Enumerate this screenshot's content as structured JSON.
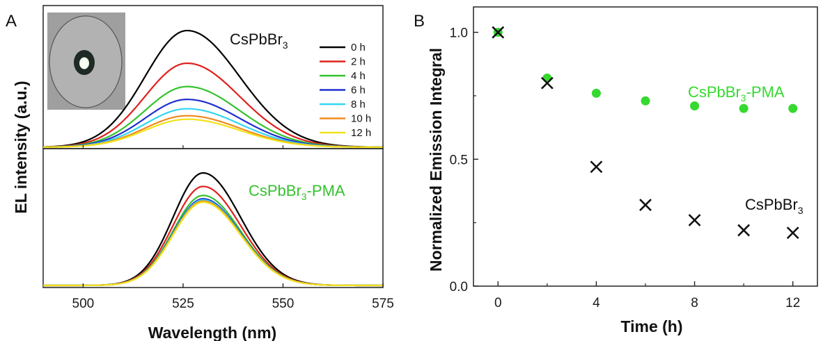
{
  "chart_data": [
    {
      "panel": "A",
      "type": "line",
      "xlabel": "Wavelength (nm)",
      "ylabel": "EL intensity (a.u.)",
      "xlim": [
        490,
        575
      ],
      "x_ticks": [
        "500",
        "525",
        "550",
        "575"
      ],
      "top": {
        "label": "CsPbBr",
        "label_sub": "3",
        "peak_nm": 526,
        "width_nm": 10.5,
        "series": [
          {
            "name": "0 h",
            "color": "#000000",
            "peak": 1.0
          },
          {
            "name": "2 h",
            "color": "#e0201c",
            "peak": 0.72
          },
          {
            "name": "4 h",
            "color": "#35c22e",
            "peak": 0.52
          },
          {
            "name": "6 h",
            "color": "#1f2fcf",
            "peak": 0.41
          },
          {
            "name": "8 h",
            "color": "#33d6f0",
            "peak": 0.33
          },
          {
            "name": "10 h",
            "color": "#ef8a1e",
            "peak": 0.27
          },
          {
            "name": "12 h",
            "color": "#f2e21a",
            "peak": 0.24
          }
        ]
      },
      "bottom": {
        "label": "CsPbBr",
        "label_sub": "3",
        "label_suffix": "-PMA",
        "label_color": "#35c22e",
        "peak_nm": 530,
        "width_nm": 7.5,
        "series": [
          {
            "name": "0 h",
            "color": "#000000",
            "peak": 1.0
          },
          {
            "name": "2 h",
            "color": "#e0201c",
            "peak": 0.88
          },
          {
            "name": "4 h",
            "color": "#35c22e",
            "peak": 0.8
          },
          {
            "name": "6 h",
            "color": "#1f2fcf",
            "peak": 0.77
          },
          {
            "name": "8 h",
            "color": "#33d6f0",
            "peak": 0.76
          },
          {
            "name": "10 h",
            "color": "#ef8a1e",
            "peak": 0.75
          },
          {
            "name": "12 h",
            "color": "#f2e21a",
            "peak": 0.74
          }
        ]
      }
    },
    {
      "panel": "B",
      "type": "scatter",
      "xlabel": "Time (h)",
      "ylabel": "Normalized Emission Integral",
      "xlim": [
        -1,
        13
      ],
      "ylim": [
        0,
        1.1
      ],
      "x_ticks": [
        "0",
        "4",
        "8",
        "12"
      ],
      "y_ticks": [
        "0.0",
        "0.5",
        "1.0"
      ],
      "series": [
        {
          "name": "CsPbBr",
          "name_sub": "3",
          "name_suffix": "-PMA",
          "color": "#35d92f",
          "marker": "circle",
          "x": [
            0,
            2,
            4,
            6,
            8,
            10,
            12
          ],
          "y": [
            1.0,
            0.82,
            0.76,
            0.73,
            0.71,
            0.7,
            0.7
          ]
        },
        {
          "name": "CsPbBr",
          "name_sub": "3",
          "name_suffix": "",
          "color": "#111111",
          "marker": "cross",
          "x": [
            0,
            2,
            4,
            6,
            8,
            10,
            12
          ],
          "y": [
            1.0,
            0.8,
            0.47,
            0.32,
            0.26,
            0.22,
            0.21
          ]
        }
      ]
    }
  ],
  "panel_a": {
    "label": "A"
  },
  "panel_b": {
    "label": "B"
  }
}
